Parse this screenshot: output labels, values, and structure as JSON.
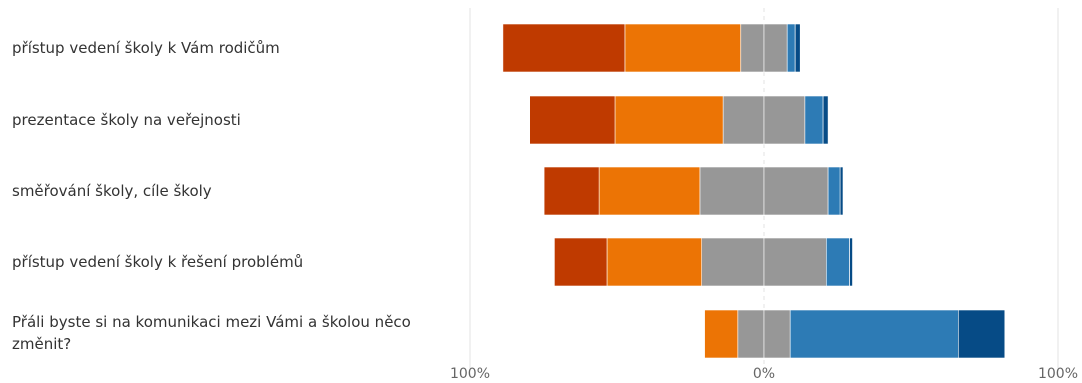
{
  "chart_data": {
    "type": "bar",
    "orientation": "horizontal",
    "stacked": true,
    "diverging": true,
    "xlim": [
      -100,
      100
    ],
    "x_ticks": [
      "100%",
      "0%",
      "100%"
    ],
    "grid": true,
    "categories": [
      "přístup vedení školy k Vám rodičům",
      "prezentace školy na veřejnosti",
      "směřování školy, cíle školy",
      "přístup vedení školy k řešení problémů",
      "Přáli byste si na komunikaci mezi Vámi a školou něco změnit?"
    ],
    "series": [
      {
        "color": "#bf3a00",
        "values": [
          -41.5,
          -29.0,
          -18.7,
          -17.9,
          0
        ]
      },
      {
        "color": "#ec7405",
        "values": [
          -39.4,
          -36.8,
          -34.3,
          -32.2,
          -11.3
        ]
      },
      {
        "color": "#979797",
        "values": [
          -7.9,
          -13.9,
          -21.8,
          -21.2,
          -8.9
        ]
      },
      {
        "color": "#979797",
        "values": [
          7.9,
          13.9,
          21.8,
          21.2,
          8.9
        ]
      },
      {
        "color": "#2d7bb5",
        "values": [
          2.7,
          6.2,
          4.1,
          7.9,
          57.2
        ]
      },
      {
        "color": "#064b86",
        "values": [
          1.7,
          1.7,
          1.0,
          1.0,
          15.8
        ]
      }
    ]
  }
}
